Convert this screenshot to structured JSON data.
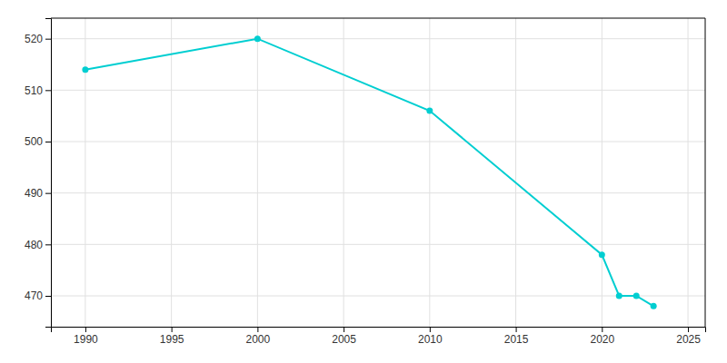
{
  "chart_data": {
    "type": "line",
    "x": [
      1990,
      2000,
      2010,
      2020,
      2021,
      2022,
      2023
    ],
    "values": [
      514,
      520,
      506,
      478,
      470,
      470,
      468
    ],
    "color": "#00CED1",
    "marker": "circle",
    "xlim": [
      1988,
      2026
    ],
    "ylim": [
      464,
      524
    ],
    "xticks": [
      1990,
      1995,
      2000,
      2005,
      2010,
      2015,
      2020,
      2025
    ],
    "yticks": [
      470,
      480,
      490,
      500,
      510,
      520
    ],
    "grid": true
  }
}
